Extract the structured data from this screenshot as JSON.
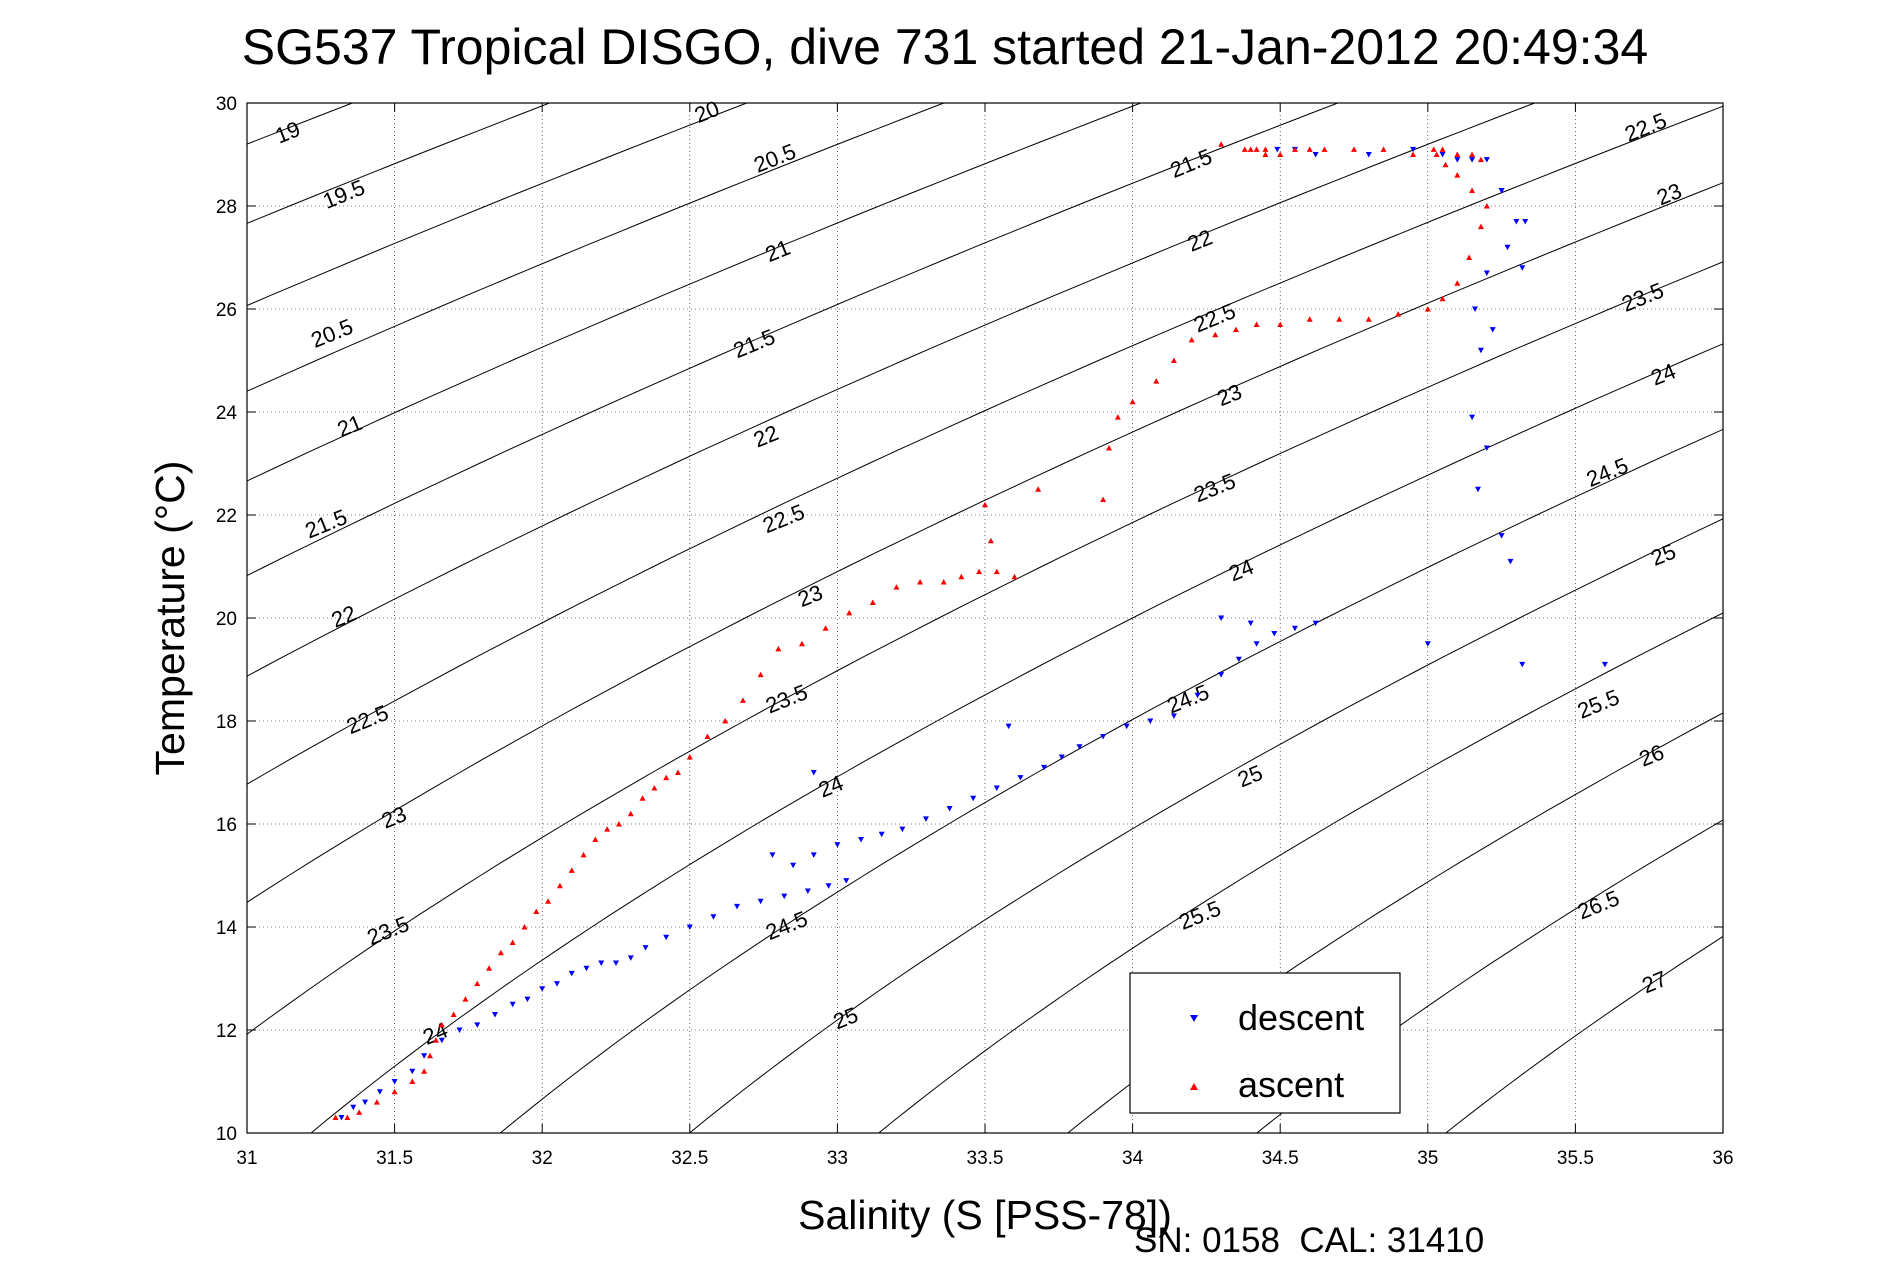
{
  "chart_data": {
    "type": "scatter",
    "title": "SG537 Tropical DISGO, dive 731 started 21-Jan-2012 20:49:34",
    "xlabel": "Salinity (S [PSS-78])",
    "ylabel": "Temperature (°C)",
    "xlim": [
      31,
      36
    ],
    "ylim": [
      10,
      30
    ],
    "xticks": [
      31,
      31.5,
      32,
      32.5,
      33,
      33.5,
      34,
      34.5,
      35,
      35.5,
      36
    ],
    "xtick_labels": [
      "31",
      "31.5",
      "32",
      "32.5",
      "33",
      "33.5",
      "34",
      "34.5",
      "35",
      "35.5",
      "36"
    ],
    "yticks": [
      10,
      12,
      14,
      16,
      18,
      20,
      22,
      24,
      26,
      28,
      30
    ],
    "ytick_labels": [
      "10",
      "12",
      "14",
      "16",
      "18",
      "20",
      "22",
      "24",
      "26",
      "28",
      "30"
    ],
    "grid": true,
    "legend_position": "bottom-right",
    "footer": "SN: 0158  CAL: 31410",
    "contours": {
      "levels": [
        19,
        19.5,
        20,
        20.5,
        21,
        21.5,
        22,
        22.5,
        23,
        23.5,
        24,
        24.5,
        25,
        25.5,
        26,
        26.5,
        27
      ],
      "labels": [
        {
          "text": "19",
          "x": 31.14,
          "y": 29.4
        },
        {
          "text": "19.5",
          "x": 31.33,
          "y": 28.2
        },
        {
          "text": "20.5",
          "x": 31.29,
          "y": 25.5
        },
        {
          "text": "21",
          "x": 31.35,
          "y": 23.7
        },
        {
          "text": "21.5",
          "x": 31.27,
          "y": 21.8
        },
        {
          "text": "22",
          "x": 31.33,
          "y": 20.0
        },
        {
          "text": "22.5",
          "x": 31.41,
          "y": 18.0
        },
        {
          "text": "23",
          "x": 31.5,
          "y": 16.1
        },
        {
          "text": "23.5",
          "x": 31.48,
          "y": 13.9
        },
        {
          "text": "24",
          "x": 31.64,
          "y": 11.9
        },
        {
          "text": "20",
          "x": 32.56,
          "y": 29.8
        },
        {
          "text": "20.5",
          "x": 32.79,
          "y": 28.9
        },
        {
          "text": "21",
          "x": 32.8,
          "y": 27.1
        },
        {
          "text": "21.5",
          "x": 32.72,
          "y": 25.3
        },
        {
          "text": "22",
          "x": 32.76,
          "y": 23.5
        },
        {
          "text": "22.5",
          "x": 32.82,
          "y": 21.9
        },
        {
          "text": "23",
          "x": 32.91,
          "y": 20.4
        },
        {
          "text": "23.5",
          "x": 32.83,
          "y": 18.4
        },
        {
          "text": "24",
          "x": 32.98,
          "y": 16.7
        },
        {
          "text": "24.5",
          "x": 32.83,
          "y": 14.0
        },
        {
          "text": "25",
          "x": 33.03,
          "y": 12.2
        },
        {
          "text": "21.5",
          "x": 34.2,
          "y": 28.8
        },
        {
          "text": "22",
          "x": 34.23,
          "y": 27.3
        },
        {
          "text": "22.5",
          "x": 34.28,
          "y": 25.8
        },
        {
          "text": "23",
          "x": 34.33,
          "y": 24.3
        },
        {
          "text": "23.5",
          "x": 34.28,
          "y": 22.5
        },
        {
          "text": "24",
          "x": 34.37,
          "y": 20.9
        },
        {
          "text": "24.5",
          "x": 34.19,
          "y": 18.4
        },
        {
          "text": "25",
          "x": 34.4,
          "y": 16.9
        },
        {
          "text": "25.5",
          "x": 34.23,
          "y": 14.2
        },
        {
          "text": "22.5",
          "x": 35.74,
          "y": 29.5
        },
        {
          "text": "23",
          "x": 35.82,
          "y": 28.2
        },
        {
          "text": "23.5",
          "x": 35.73,
          "y": 26.2
        },
        {
          "text": "24",
          "x": 35.8,
          "y": 24.7
        },
        {
          "text": "24.5",
          "x": 35.61,
          "y": 22.8
        },
        {
          "text": "25",
          "x": 35.8,
          "y": 21.2
        },
        {
          "text": "25.5",
          "x": 35.58,
          "y": 18.3
        },
        {
          "text": "26",
          "x": 35.76,
          "y": 17.3
        },
        {
          "text": "26.5",
          "x": 35.58,
          "y": 14.4
        },
        {
          "text": "27",
          "x": 35.77,
          "y": 12.9
        }
      ]
    },
    "series": [
      {
        "name": "descent",
        "color": "#0000ff",
        "marker": "triangle-down",
        "x": [
          31.32,
          31.36,
          31.4,
          31.45,
          31.5,
          31.56,
          31.6,
          31.66,
          31.72,
          31.78,
          31.84,
          31.9,
          31.95,
          32.0,
          32.05,
          32.1,
          32.15,
          32.2,
          32.25,
          32.3,
          32.35,
          32.42,
          32.5,
          32.58,
          32.66,
          32.74,
          32.82,
          32.9,
          32.97,
          33.03,
          32.85,
          32.92,
          33.0,
          33.08,
          33.15,
          33.22,
          33.3,
          33.38,
          33.46,
          33.54,
          33.62,
          33.7,
          33.76,
          33.82,
          33.9,
          33.98,
          34.06,
          34.14,
          34.22,
          34.3,
          34.36,
          34.42,
          34.48,
          34.55,
          34.62,
          34.3,
          34.4,
          32.78,
          32.92,
          33.58,
          34.49,
          34.55,
          34.62,
          34.8,
          34.95,
          35.05,
          35.1,
          35.15,
          35.2,
          35.25,
          35.3,
          35.2,
          35.16,
          35.22,
          35.18,
          35.15,
          35.17,
          35.2,
          35.25,
          35.28,
          35.32,
          35.33,
          35.0,
          35.6,
          35.27,
          35.25,
          35.32
        ],
        "y": [
          10.3,
          10.5,
          10.6,
          10.8,
          11.0,
          11.2,
          11.5,
          11.8,
          12.0,
          12.1,
          12.3,
          12.5,
          12.6,
          12.8,
          12.9,
          13.1,
          13.2,
          13.3,
          13.3,
          13.4,
          13.6,
          13.8,
          14.0,
          14.2,
          14.4,
          14.5,
          14.6,
          14.7,
          14.8,
          14.9,
          15.2,
          15.4,
          15.6,
          15.7,
          15.8,
          15.9,
          16.1,
          16.3,
          16.5,
          16.7,
          16.9,
          17.1,
          17.3,
          17.5,
          17.7,
          17.9,
          18.0,
          18.1,
          18.5,
          18.9,
          19.2,
          19.5,
          19.7,
          19.8,
          19.9,
          20.0,
          19.9,
          15.4,
          17.0,
          17.9,
          29.1,
          29.1,
          29.0,
          29.0,
          29.1,
          29.0,
          28.9,
          28.9,
          28.9,
          28.3,
          27.7,
          26.7,
          26.0,
          25.6,
          25.2,
          23.9,
          22.5,
          23.3,
          21.6,
          21.1,
          19.1,
          27.7,
          19.5,
          19.1,
          27.2,
          28.3,
          26.8
        ]
      },
      {
        "name": "ascent",
        "color": "#ff0000",
        "marker": "triangle-up",
        "x": [
          31.3,
          31.34,
          31.38,
          31.44,
          31.5,
          31.56,
          31.6,
          31.62,
          31.64,
          31.66,
          31.7,
          31.74,
          31.78,
          31.82,
          31.86,
          31.9,
          31.94,
          31.98,
          32.02,
          32.06,
          32.1,
          32.14,
          32.18,
          32.22,
          32.26,
          32.3,
          32.34,
          32.38,
          32.42,
          32.46,
          32.5,
          32.56,
          32.62,
          32.68,
          32.74,
          32.8,
          32.88,
          32.96,
          33.04,
          33.12,
          33.2,
          33.28,
          33.36,
          33.42,
          33.48,
          33.54,
          33.52,
          33.5,
          33.6,
          33.68,
          33.9,
          33.92,
          33.95,
          34.0,
          34.08,
          34.14,
          34.2,
          34.28,
          34.35,
          34.42,
          34.5,
          34.6,
          34.7,
          34.8,
          34.9,
          35.0,
          35.05,
          35.1,
          35.14,
          35.18,
          35.2,
          35.15,
          35.1,
          35.06,
          35.03,
          35.02,
          35.05,
          35.1,
          35.15,
          35.18,
          34.95,
          34.85,
          34.75,
          34.65,
          34.55,
          34.45,
          34.4,
          34.5,
          34.45,
          34.38,
          34.3,
          34.42,
          34.6
        ],
        "y": [
          10.3,
          10.3,
          10.4,
          10.6,
          10.8,
          11.0,
          11.2,
          11.5,
          11.8,
          12.1,
          12.3,
          12.6,
          12.9,
          13.2,
          13.5,
          13.7,
          14.0,
          14.3,
          14.5,
          14.8,
          15.1,
          15.4,
          15.7,
          15.9,
          16.0,
          16.2,
          16.5,
          16.7,
          16.9,
          17.0,
          17.3,
          17.7,
          18.0,
          18.4,
          18.9,
          19.4,
          19.5,
          19.8,
          20.1,
          20.3,
          20.6,
          20.7,
          20.7,
          20.8,
          20.9,
          20.9,
          21.5,
          22.2,
          20.8,
          22.5,
          22.3,
          23.3,
          23.9,
          24.2,
          24.6,
          25.0,
          25.4,
          25.5,
          25.6,
          25.7,
          25.7,
          25.8,
          25.8,
          25.8,
          25.9,
          26.0,
          26.2,
          26.5,
          27.0,
          27.6,
          28.0,
          28.3,
          28.6,
          28.8,
          29.0,
          29.1,
          29.1,
          29.0,
          29.0,
          28.9,
          29.0,
          29.1,
          29.1,
          29.1,
          29.1,
          29.1,
          29.1,
          29.0,
          29.0,
          29.1,
          29.2,
          29.1,
          29.1
        ]
      }
    ]
  }
}
